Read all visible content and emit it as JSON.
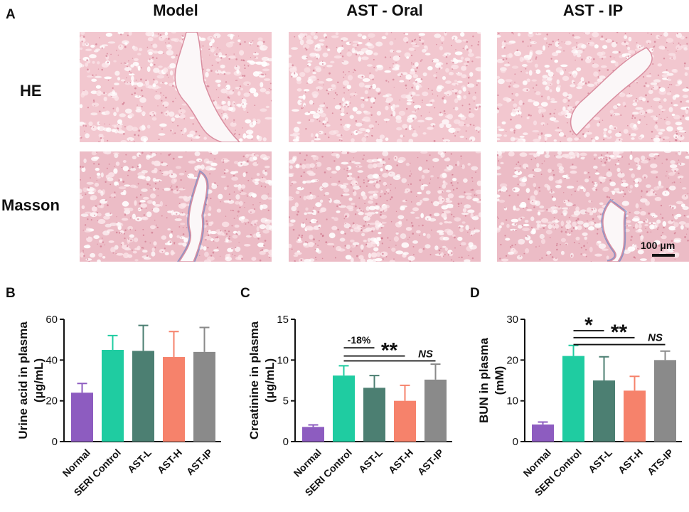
{
  "panels": {
    "a": "A",
    "b": "B",
    "c": "C",
    "d": "D"
  },
  "micrographs": {
    "columns": [
      "Model",
      "AST - Oral",
      "AST - IP"
    ],
    "rows": [
      "HE",
      "Masson"
    ],
    "scale_bar": "100 μm"
  },
  "colors": {
    "normal": "#8d5cc0",
    "seri_control": "#1fcca1",
    "ast_l": "#4c7f72",
    "ast_h": "#f6826b",
    "ast_ip": "#8a8a8a",
    "tissue": "#f2c7cf"
  },
  "chart_data": [
    {
      "type": "bar",
      "panel": "B",
      "ylabel": "Urine acid in plasma (μg/mL)",
      "ylabel_lines": [
        "Urine acid in plasma",
        "(μg/mL)"
      ],
      "categories": [
        "Normal",
        "SERI Control",
        "AST-L",
        "AST-H",
        "AST-IP"
      ],
      "values": [
        24,
        45,
        44.5,
        41.5,
        44
      ],
      "errors": [
        4.5,
        7,
        12.5,
        12.5,
        12
      ],
      "ylim": [
        0,
        60
      ],
      "yticks": [
        0,
        20,
        40,
        60
      ],
      "annotations": []
    },
    {
      "type": "bar",
      "panel": "C",
      "ylabel": "Creatinine in plasma (μg/mL)",
      "ylabel_lines": [
        "Creatinine in plasma",
        "(μg/mL)"
      ],
      "categories": [
        "Normal",
        "SERI Control",
        "AST-L",
        "AST-H",
        "AST-IP"
      ],
      "values": [
        1.8,
        8.1,
        6.6,
        5,
        7.6
      ],
      "errors": [
        0.25,
        1.2,
        1.5,
        1.9,
        1.9
      ],
      "ylim": [
        0,
        15
      ],
      "yticks": [
        0,
        5,
        10,
        15
      ],
      "annotations": [
        {
          "from": 1,
          "to": 2,
          "y": 11.5,
          "text": "-18%",
          "style": "plain"
        },
        {
          "from": 1,
          "to": 3,
          "y": 10.5,
          "text": "**",
          "style": "stars"
        },
        {
          "from": 1,
          "to": 4,
          "y": 9.9,
          "text": "NS",
          "style": "italic"
        }
      ]
    },
    {
      "type": "bar",
      "panel": "D",
      "ylabel": "BUN in plasma (mM)",
      "ylabel_lines": [
        "BUN in plasma",
        "(mM)"
      ],
      "categories": [
        "Normal",
        "SERI Control",
        "AST-L",
        "AST-H",
        "ATS-IP"
      ],
      "values": [
        4.2,
        21,
        15,
        12.5,
        20
      ],
      "errors": [
        0.6,
        2.6,
        5.8,
        3.5,
        2.2
      ],
      "ylim": [
        0,
        30
      ],
      "yticks": [
        0,
        10,
        20,
        30
      ],
      "annotations": [
        {
          "from": 1,
          "to": 2,
          "y": 27.2,
          "text": "*",
          "style": "stars"
        },
        {
          "from": 1,
          "to": 3,
          "y": 25.5,
          "text": "**",
          "style": "stars"
        },
        {
          "from": 1,
          "to": 4,
          "y": 23.8,
          "text": "NS",
          "style": "italic"
        }
      ]
    }
  ]
}
